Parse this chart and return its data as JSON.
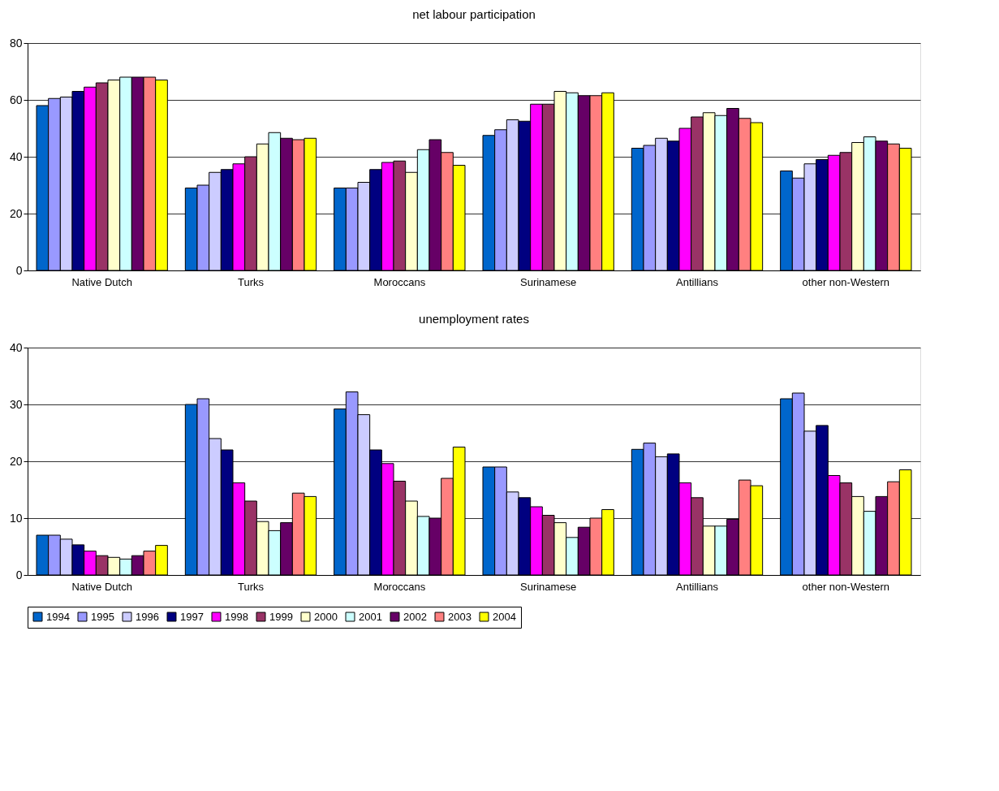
{
  "chart_data": [
    {
      "type": "bar",
      "title": "net labour participation",
      "categories": [
        "Native Dutch",
        "Turks",
        "Moroccans",
        "Surinamese",
        "Antillians",
        "other non-Western"
      ],
      "ylim": [
        0,
        80
      ],
      "yticks": [
        0,
        20,
        40,
        60,
        80
      ],
      "grid": "y",
      "legend": false,
      "series": [
        {
          "color": "#0066cc",
          "values": [
            58,
            29,
            29,
            47.5,
            43,
            35
          ]
        },
        {
          "color": "#9999ff",
          "values": [
            60.5,
            30,
            29,
            49.5,
            44,
            32.5
          ]
        },
        {
          "color": "#ccccff",
          "values": [
            61,
            34.5,
            31,
            53,
            46.5,
            37.5
          ]
        },
        {
          "color": "#000080",
          "values": [
            63,
            35.5,
            35.5,
            52.5,
            45.5,
            39
          ]
        },
        {
          "color": "#ff00ff",
          "values": [
            64.5,
            37.5,
            38,
            58.5,
            50,
            40.5
          ]
        },
        {
          "color": "#993366",
          "values": [
            66,
            40,
            38.5,
            58.5,
            54,
            41.5
          ]
        },
        {
          "color": "#ffffcc",
          "values": [
            67,
            44.5,
            34.5,
            63,
            55.5,
            45
          ]
        },
        {
          "color": "#ccffff",
          "values": [
            68,
            48.5,
            42.5,
            62.5,
            54.5,
            47
          ]
        },
        {
          "color": "#660066",
          "values": [
            68,
            46.5,
            46,
            61.5,
            57,
            45.5
          ]
        },
        {
          "color": "#ff8080",
          "values": [
            68,
            46,
            41.5,
            61.5,
            53.5,
            44.5
          ]
        },
        {
          "color": "#ffff00",
          "values": [
            67,
            46.5,
            37,
            62.5,
            52,
            43
          ]
        }
      ]
    },
    {
      "type": "bar",
      "title": "unemployment rates",
      "categories": [
        "Native Dutch",
        "Turks",
        "Moroccans",
        "Surinamese",
        "Antillians",
        "other non-Western"
      ],
      "ylim": [
        0,
        40
      ],
      "yticks": [
        0,
        10,
        20,
        30,
        40
      ],
      "grid": "y",
      "legend": "bottom",
      "series": [
        {
          "name": "1994",
          "color": "#0066cc",
          "values": [
            7,
            30,
            29.2,
            19,
            22.1,
            31
          ]
        },
        {
          "name": "1995",
          "color": "#9999ff",
          "values": [
            7,
            31,
            32.2,
            19,
            23.2,
            32
          ]
        },
        {
          "name": "1996",
          "color": "#ccccff",
          "values": [
            6.3,
            24,
            28.2,
            14.6,
            20.8,
            25.3
          ]
        },
        {
          "name": "1997",
          "color": "#000080",
          "values": [
            5.3,
            22,
            22,
            13.6,
            21.3,
            26.3
          ]
        },
        {
          "name": "1998",
          "color": "#ff00ff",
          "values": [
            4.2,
            16.2,
            19.6,
            12,
            16.2,
            17.5
          ]
        },
        {
          "name": "1999",
          "color": "#993366",
          "values": [
            3.4,
            13,
            16.5,
            10.5,
            13.6,
            16.2
          ]
        },
        {
          "name": "2000",
          "color": "#ffffcc",
          "values": [
            3.1,
            9.4,
            13,
            9.2,
            8.6,
            13.8
          ]
        },
        {
          "name": "2001",
          "color": "#ccffff",
          "values": [
            2.8,
            7.8,
            10.3,
            6.6,
            8.6,
            11.2
          ]
        },
        {
          "name": "2002",
          "color": "#660066",
          "values": [
            3.4,
            9.2,
            10,
            8.4,
            9.8,
            13.8
          ]
        },
        {
          "name": "2003",
          "color": "#ff8080",
          "values": [
            4.2,
            14.4,
            17,
            10,
            16.7,
            16.4
          ]
        },
        {
          "name": "2004",
          "color": "#ffff00",
          "values": [
            5.2,
            13.8,
            22.5,
            11.5,
            15.7,
            18.5
          ]
        }
      ]
    }
  ]
}
